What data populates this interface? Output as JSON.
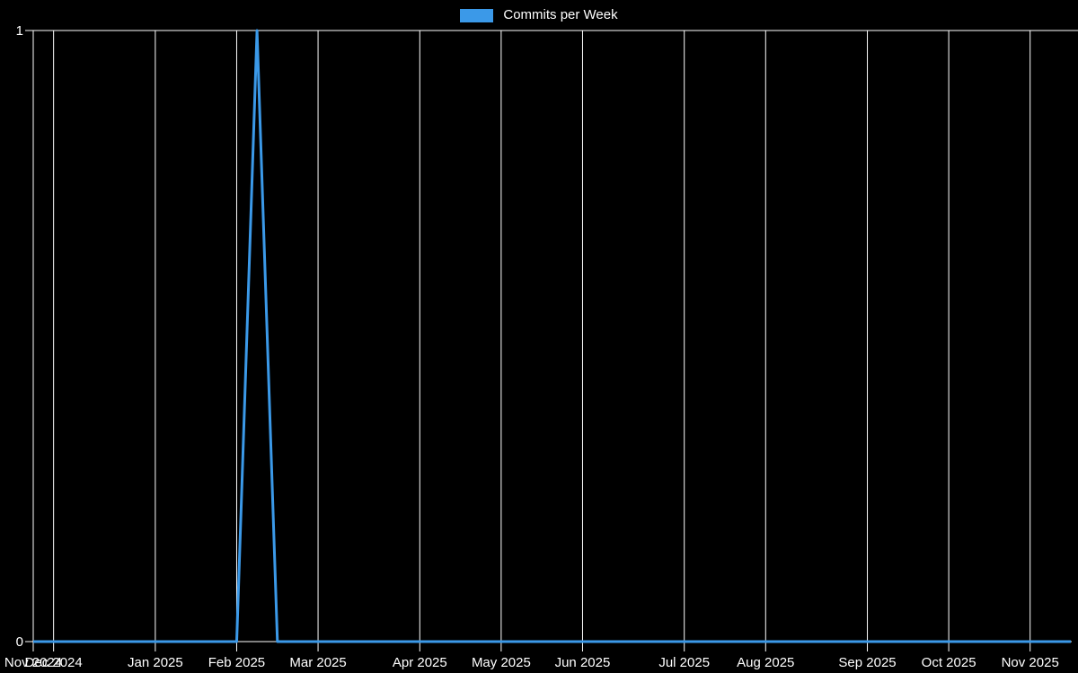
{
  "colors": {
    "background": "#000000",
    "grid": "#ffffff",
    "axis_text": "#ffffff",
    "line": "#3b99e8"
  },
  "chart_data": {
    "type": "line",
    "title": "",
    "legend_entries": [
      "Commits per Week"
    ],
    "legend_position": "top",
    "grid": true,
    "x_unit": "week",
    "num_weeks": 52,
    "x_tick_labels": [
      "Nov 2024",
      "Dec 2024",
      "Jan 2025",
      "Feb 2025",
      "Mar 2025",
      "Apr 2025",
      "May 2025",
      "Jun 2025",
      "Jul 2025",
      "Aug 2025",
      "Sep 2025",
      "Oct 2025",
      "Nov 2025"
    ],
    "x_tick_week_index": [
      0,
      1,
      6,
      10,
      14,
      19,
      23,
      27,
      32,
      36,
      41,
      45,
      49
    ],
    "y_ticks": [
      0,
      1
    ],
    "ylim": [
      0,
      1
    ],
    "series": [
      {
        "name": "Commits per Week",
        "color": "#3b99e8",
        "values": [
          0,
          0,
          0,
          0,
          0,
          0,
          0,
          0,
          0,
          0,
          0,
          1,
          0,
          0,
          0,
          0,
          0,
          0,
          0,
          0,
          0,
          0,
          0,
          0,
          0,
          0,
          0,
          0,
          0,
          0,
          0,
          0,
          0,
          0,
          0,
          0,
          0,
          0,
          0,
          0,
          0,
          0,
          0,
          0,
          0,
          0,
          0,
          0,
          0,
          0,
          0,
          0
        ]
      }
    ],
    "peak": {
      "value": 1,
      "week_index": 11,
      "between_labels": [
        "Feb 2025",
        "Mar 2025"
      ]
    }
  }
}
